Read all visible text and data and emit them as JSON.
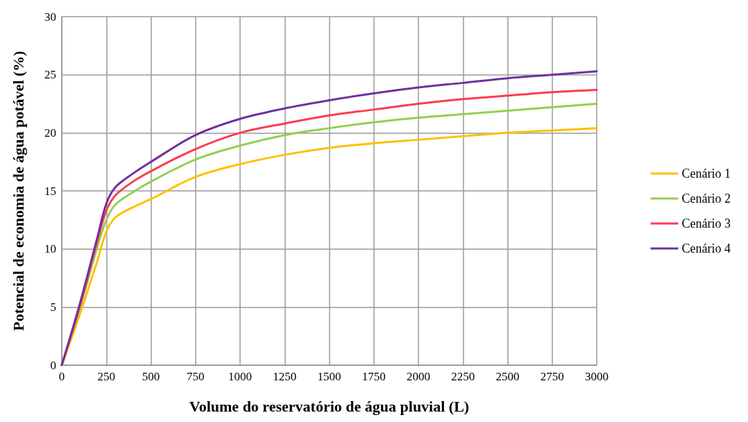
{
  "chart_data": {
    "type": "line",
    "xlabel": "Volume do reservatório de água pluvial (L)",
    "ylabel": "Potencial de economia de água potável (%)",
    "x": [
      0,
      100,
      200,
      250,
      300,
      400,
      500,
      750,
      1000,
      1250,
      1500,
      1750,
      2000,
      2250,
      2500,
      2750,
      3000
    ],
    "series": [
      {
        "name": "Cenário 1",
        "color": "#ffc000",
        "values": [
          0,
          4.3,
          9.0,
          11.5,
          12.7,
          13.6,
          14.3,
          16.2,
          17.3,
          18.1,
          18.7,
          19.1,
          19.4,
          19.7,
          20.0,
          20.2,
          20.4
        ]
      },
      {
        "name": "Cenário 2",
        "color": "#92d050",
        "values": [
          0,
          4.8,
          10.2,
          12.5,
          13.8,
          14.9,
          15.8,
          17.7,
          18.9,
          19.8,
          20.4,
          20.9,
          21.3,
          21.6,
          21.9,
          22.2,
          22.5
        ]
      },
      {
        "name": "Cenário 3",
        "color": "#ff3b4e",
        "values": [
          0,
          5.0,
          10.7,
          13.3,
          14.6,
          15.8,
          16.7,
          18.6,
          20.0,
          20.8,
          21.5,
          22.0,
          22.5,
          22.9,
          23.2,
          23.5,
          23.7
        ]
      },
      {
        "name": "Cenário 4",
        "color": "#7030a0",
        "values": [
          0,
          5.2,
          11.0,
          13.9,
          15.3,
          16.5,
          17.5,
          19.8,
          21.2,
          22.1,
          22.8,
          23.4,
          23.9,
          24.3,
          24.7,
          25.0,
          25.3
        ]
      }
    ],
    "xlim": [
      0,
      3000
    ],
    "xticks": [
      0,
      250,
      500,
      750,
      1000,
      1250,
      1500,
      1750,
      2000,
      2250,
      2500,
      2750,
      3000
    ],
    "ylim": [
      0,
      30
    ],
    "yticks": [
      0,
      5,
      10,
      15,
      20,
      25,
      30
    ],
    "grid": true,
    "legend": "right",
    "marker": "none",
    "line_style": "solid"
  }
}
